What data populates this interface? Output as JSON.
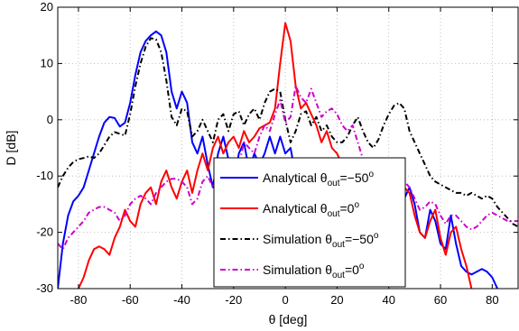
{
  "chart_data": {
    "type": "line",
    "xlabel": "θ [deg]",
    "ylabel": "D [dB]",
    "xlim": [
      -88,
      90
    ],
    "ylim": [
      -30,
      20
    ],
    "xticks": [
      -80,
      -60,
      -40,
      -20,
      0,
      20,
      40,
      60,
      80
    ],
    "yticks": [
      -30,
      -20,
      -10,
      0,
      10,
      20
    ],
    "grid": true,
    "legend_placement": "bottom-center",
    "series": [
      {
        "name": "Analytical θout=−50°",
        "legend": {
          "prefix": "Analytical θ",
          "sub": "out",
          "mid": "=−50",
          "sup": "o"
        },
        "color": "#0000ff",
        "dash": "solid",
        "points": [
          [
            -88,
            -30
          ],
          [
            -86,
            -22
          ],
          [
            -84,
            -17
          ],
          [
            -82,
            -14.5
          ],
          [
            -80,
            -13.5
          ],
          [
            -78,
            -12
          ],
          [
            -76,
            -9
          ],
          [
            -74,
            -6
          ],
          [
            -72,
            -3
          ],
          [
            -70,
            -0.5
          ],
          [
            -68,
            0.5
          ],
          [
            -66,
            0.3
          ],
          [
            -64,
            -1.2
          ],
          [
            -62,
            -0.5
          ],
          [
            -60,
            3
          ],
          [
            -58,
            8
          ],
          [
            -56,
            12
          ],
          [
            -54,
            14
          ],
          [
            -52,
            15
          ],
          [
            -50,
            15.7
          ],
          [
            -48,
            15
          ],
          [
            -46,
            12
          ],
          [
            -44,
            5
          ],
          [
            -42,
            2
          ],
          [
            -40,
            5
          ],
          [
            -38,
            3
          ],
          [
            -36,
            -4
          ],
          [
            -34,
            -6
          ],
          [
            -32,
            -3
          ],
          [
            -30,
            -8
          ],
          [
            -28,
            -12
          ],
          [
            -26,
            -6
          ],
          [
            -24,
            -3
          ],
          [
            -22,
            -7
          ],
          [
            -20,
            -12
          ],
          [
            -18,
            -6
          ],
          [
            -16,
            -4
          ],
          [
            -14,
            -9
          ],
          [
            -12,
            -6
          ],
          [
            -10,
            -8
          ],
          [
            -8,
            -6
          ],
          [
            -6,
            -3
          ],
          [
            -4,
            -6
          ],
          [
            -2,
            -3
          ],
          [
            0,
            -6
          ],
          [
            2,
            -5
          ],
          [
            4,
            -10
          ],
          [
            6,
            -7
          ],
          [
            8,
            -10
          ],
          [
            10,
            -12
          ],
          [
            20,
            -15
          ],
          [
            30,
            -16
          ],
          [
            40,
            -17
          ],
          [
            46,
            -14
          ],
          [
            48,
            -12
          ],
          [
            50,
            -15
          ],
          [
            52,
            -20
          ],
          [
            54,
            -21
          ],
          [
            56,
            -16
          ],
          [
            58,
            -18
          ],
          [
            60,
            -22
          ],
          [
            62,
            -23
          ],
          [
            64,
            -17
          ],
          [
            66,
            -22
          ],
          [
            68,
            -26
          ],
          [
            70,
            -27
          ],
          [
            72,
            -27.5
          ],
          [
            74,
            -27
          ],
          [
            76,
            -26.5
          ],
          [
            78,
            -27
          ],
          [
            80,
            -28
          ],
          [
            82,
            -30
          ]
        ]
      },
      {
        "name": "Analytical θout=0°",
        "legend": {
          "prefix": "Analytical θ",
          "sub": "out",
          "mid": "=0",
          "sup": "o"
        },
        "color": "#ff0000",
        "dash": "solid",
        "points": [
          [
            -80,
            -30
          ],
          [
            -78,
            -28
          ],
          [
            -76,
            -25
          ],
          [
            -74,
            -23
          ],
          [
            -72,
            -22.5
          ],
          [
            -70,
            -23
          ],
          [
            -68,
            -24
          ],
          [
            -66,
            -21
          ],
          [
            -64,
            -19
          ],
          [
            -62,
            -16
          ],
          [
            -60,
            -18
          ],
          [
            -58,
            -19
          ],
          [
            -56,
            -15
          ],
          [
            -54,
            -13
          ],
          [
            -52,
            -12
          ],
          [
            -50,
            -15
          ],
          [
            -48,
            -11
          ],
          [
            -46,
            -9
          ],
          [
            -44,
            -12
          ],
          [
            -42,
            -14
          ],
          [
            -40,
            -11
          ],
          [
            -38,
            -9
          ],
          [
            -36,
            -13
          ],
          [
            -34,
            -9
          ],
          [
            -32,
            -6
          ],
          [
            -30,
            -9
          ],
          [
            -28,
            -5
          ],
          [
            -26,
            -3
          ],
          [
            -24,
            -6
          ],
          [
            -22,
            -4
          ],
          [
            -20,
            -3
          ],
          [
            -18,
            -5
          ],
          [
            -16,
            -2
          ],
          [
            -14,
            -4
          ],
          [
            -12,
            -3
          ],
          [
            -10,
            -1.5
          ],
          [
            -8,
            -1
          ],
          [
            -6,
            -0.5
          ],
          [
            -4,
            2
          ],
          [
            -2,
            10
          ],
          [
            0,
            17.2
          ],
          [
            2,
            14
          ],
          [
            4,
            6
          ],
          [
            6,
            2
          ],
          [
            8,
            3
          ],
          [
            10,
            1
          ],
          [
            12,
            -1
          ],
          [
            14,
            -4
          ],
          [
            16,
            -2
          ],
          [
            18,
            -5
          ],
          [
            20,
            -6
          ],
          [
            22,
            -8
          ],
          [
            24,
            -9
          ],
          [
            26,
            -10
          ],
          [
            44,
            -14
          ],
          [
            46,
            -12
          ],
          [
            48,
            -13
          ],
          [
            50,
            -17
          ],
          [
            52,
            -20
          ],
          [
            54,
            -21
          ],
          [
            56,
            -18
          ],
          [
            58,
            -16
          ],
          [
            60,
            -21
          ],
          [
            62,
            -24
          ],
          [
            64,
            -20
          ],
          [
            66,
            -19
          ],
          [
            68,
            -23
          ],
          [
            70,
            -26
          ],
          [
            72,
            -30
          ]
        ]
      },
      {
        "name": "Simulation θout=−50°",
        "legend": {
          "prefix": "Simulation  θ",
          "sub": "out",
          "mid": "=−50",
          "sup": "o"
        },
        "color": "#000000",
        "dash": "6,3,1.5,3",
        "points": [
          [
            -88,
            -12
          ],
          [
            -86,
            -10
          ],
          [
            -84,
            -8.5
          ],
          [
            -82,
            -7.5
          ],
          [
            -80,
            -7
          ],
          [
            -78,
            -6.8
          ],
          [
            -76,
            -6.5
          ],
          [
            -74,
            -6.8
          ],
          [
            -72,
            -6
          ],
          [
            -70,
            -4.5
          ],
          [
            -68,
            -3
          ],
          [
            -66,
            -2.2
          ],
          [
            -64,
            -2.5
          ],
          [
            -62,
            -2.8
          ],
          [
            -60,
            1
          ],
          [
            -58,
            6
          ],
          [
            -56,
            10
          ],
          [
            -54,
            13
          ],
          [
            -52,
            14.5
          ],
          [
            -50,
            14.3
          ],
          [
            -48,
            12
          ],
          [
            -46,
            7
          ],
          [
            -44,
            0.5
          ],
          [
            -42,
            -1
          ],
          [
            -40,
            2
          ],
          [
            -38,
            1.5
          ],
          [
            -36,
            -3
          ],
          [
            -34,
            -2
          ],
          [
            -32,
            0
          ],
          [
            -30,
            -2
          ],
          [
            -28,
            -4
          ],
          [
            -26,
            0
          ],
          [
            -24,
            1
          ],
          [
            -22,
            -2
          ],
          [
            -20,
            1
          ],
          [
            -18,
            1.5
          ],
          [
            -16,
            -1
          ],
          [
            -14,
            1
          ],
          [
            -12,
            2
          ],
          [
            -10,
            0
          ],
          [
            -8,
            3
          ],
          [
            -6,
            5
          ],
          [
            -4,
            5.5
          ],
          [
            -2,
            5
          ],
          [
            0,
            0
          ],
          [
            2,
            -4
          ],
          [
            4,
            -2
          ],
          [
            6,
            1
          ],
          [
            8,
            1.5
          ],
          [
            10,
            -1
          ],
          [
            12,
            0.5
          ],
          [
            14,
            -2
          ],
          [
            16,
            -1
          ],
          [
            18,
            -3
          ],
          [
            20,
            -4
          ],
          [
            22,
            -4
          ],
          [
            24,
            -3
          ],
          [
            26,
            -1
          ],
          [
            28,
            0.5
          ],
          [
            30,
            -2
          ],
          [
            32,
            -4
          ],
          [
            34,
            -5
          ],
          [
            36,
            -3.5
          ],
          [
            38,
            -1
          ],
          [
            40,
            1
          ],
          [
            42,
            2.5
          ],
          [
            44,
            3
          ],
          [
            46,
            2
          ],
          [
            48,
            -2
          ],
          [
            50,
            -4
          ],
          [
            52,
            -6
          ],
          [
            54,
            -8
          ],
          [
            56,
            -10
          ],
          [
            58,
            -11
          ],
          [
            60,
            -11.5
          ],
          [
            62,
            -12
          ],
          [
            64,
            -12.5
          ],
          [
            66,
            -13
          ],
          [
            68,
            -13
          ],
          [
            70,
            -13.5
          ],
          [
            72,
            -13
          ],
          [
            74,
            -13.5
          ],
          [
            76,
            -14
          ],
          [
            78,
            -13.5
          ],
          [
            80,
            -14
          ],
          [
            82,
            -15.5
          ],
          [
            84,
            -16.5
          ],
          [
            86,
            -17.5
          ],
          [
            88,
            -18.5
          ],
          [
            90,
            -19
          ]
        ]
      },
      {
        "name": "Simulation θout=0°",
        "legend": {
          "prefix": "Simulation θ",
          "sub": "out",
          "mid": "=0",
          "sup": "o"
        },
        "color": "#cc00cc",
        "dash": "6,3,1.5,3",
        "points": [
          [
            -88,
            -22
          ],
          [
            -86,
            -23
          ],
          [
            -84,
            -21
          ],
          [
            -82,
            -20
          ],
          [
            -80,
            -19
          ],
          [
            -78,
            -18
          ],
          [
            -76,
            -16.5
          ],
          [
            -74,
            -16
          ],
          [
            -72,
            -15.5
          ],
          [
            -70,
            -15.5
          ],
          [
            -68,
            -16
          ],
          [
            -66,
            -16.5
          ],
          [
            -64,
            -18
          ],
          [
            -62,
            -17
          ],
          [
            -60,
            -15
          ],
          [
            -58,
            -14
          ],
          [
            -56,
            -13.5
          ],
          [
            -54,
            -14
          ],
          [
            -52,
            -15
          ],
          [
            -50,
            -13
          ],
          [
            -48,
            -12
          ],
          [
            -46,
            -11
          ],
          [
            -44,
            -10.5
          ],
          [
            -42,
            -10.5
          ],
          [
            -40,
            -11
          ],
          [
            -38,
            -12
          ],
          [
            -36,
            -15
          ],
          [
            -34,
            -14
          ],
          [
            -32,
            -11
          ],
          [
            -30,
            -10
          ],
          [
            -28,
            -12
          ],
          [
            -26,
            -9
          ],
          [
            -24,
            -7
          ],
          [
            -22,
            -8
          ],
          [
            -20,
            -11
          ],
          [
            -18,
            -8
          ],
          [
            -16,
            -4
          ],
          [
            -14,
            -5
          ],
          [
            -12,
            -6
          ],
          [
            -10,
            -3
          ],
          [
            -8,
            -1
          ],
          [
            -6,
            -2
          ],
          [
            -4,
            1
          ],
          [
            -2,
            3.5
          ],
          [
            0,
            -0.5
          ],
          [
            2,
            0.5
          ],
          [
            4,
            6
          ],
          [
            6,
            4
          ],
          [
            8,
            3
          ],
          [
            10,
            5.5
          ],
          [
            12,
            3
          ],
          [
            14,
            0.5
          ],
          [
            16,
            1.5
          ],
          [
            18,
            2
          ],
          [
            20,
            1
          ],
          [
            22,
            -1
          ],
          [
            24,
            -2
          ],
          [
            26,
            -1
          ],
          [
            28,
            -4
          ],
          [
            30,
            -7
          ],
          [
            32,
            -9
          ],
          [
            34,
            -10
          ],
          [
            36,
            -10
          ],
          [
            38,
            -11
          ],
          [
            40,
            -13
          ],
          [
            42,
            -13.5
          ],
          [
            44,
            -12
          ],
          [
            46,
            -11
          ],
          [
            48,
            -12
          ],
          [
            50,
            -14
          ],
          [
            52,
            -16
          ],
          [
            54,
            -15.5
          ],
          [
            56,
            -14.5
          ],
          [
            58,
            -15
          ],
          [
            60,
            -17
          ],
          [
            62,
            -18.5
          ],
          [
            64,
            -17
          ],
          [
            66,
            -17
          ],
          [
            68,
            -18
          ],
          [
            70,
            -19
          ],
          [
            72,
            -19.5
          ],
          [
            74,
            -19
          ],
          [
            76,
            -18
          ],
          [
            78,
            -17
          ],
          [
            80,
            -16.5
          ],
          [
            82,
            -17
          ],
          [
            84,
            -17.5
          ],
          [
            86,
            -18
          ],
          [
            88,
            -18
          ],
          [
            90,
            -18
          ]
        ]
      }
    ]
  }
}
